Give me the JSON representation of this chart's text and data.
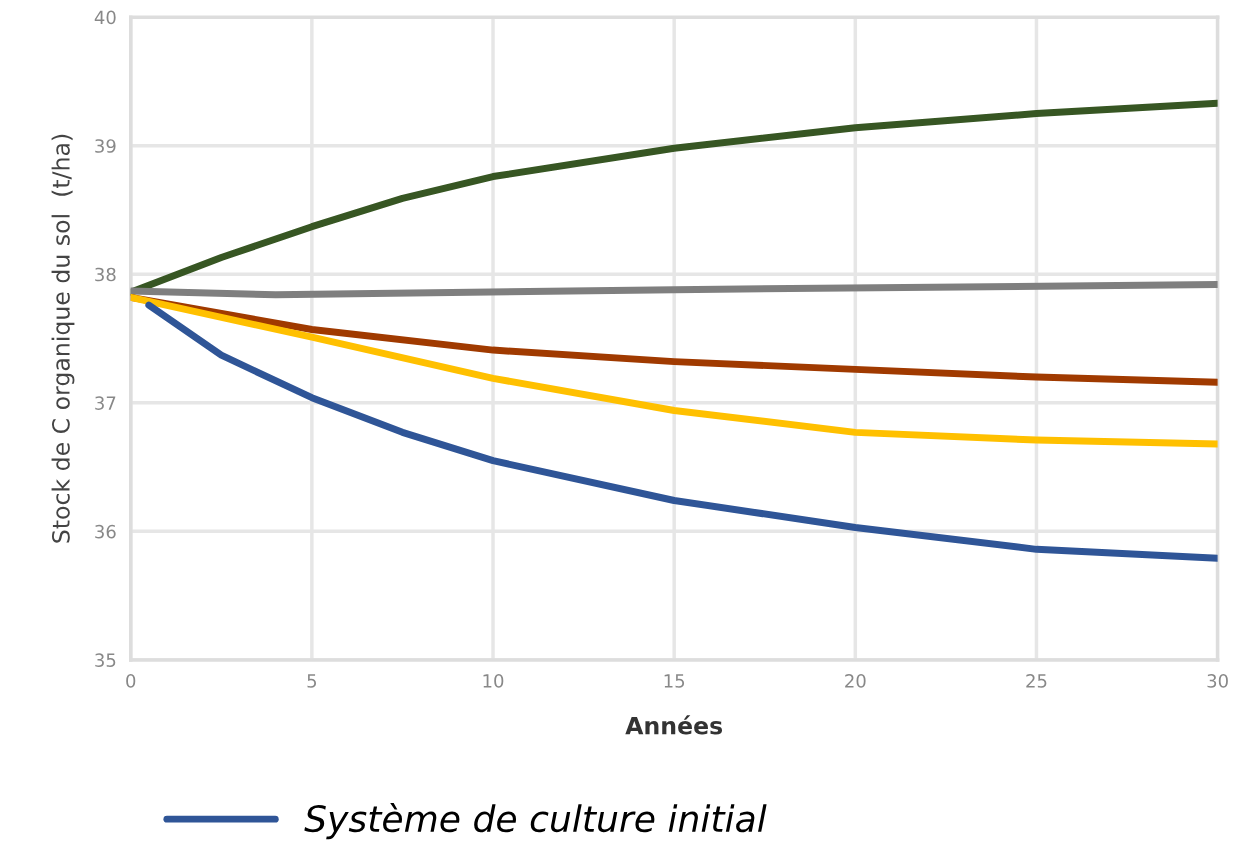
{
  "chart_data": {
    "type": "line",
    "xlabel": "Années",
    "ylabel": "Stock de C organique du sol  (t/ha)",
    "xlim": [
      0,
      30
    ],
    "xticks": [
      0,
      5,
      10,
      15,
      20,
      25,
      30
    ],
    "ylim": [
      35,
      40
    ],
    "yticks": [
      35,
      36,
      37,
      38,
      39,
      40
    ],
    "grid": true,
    "legend": "bottom",
    "line_style": "solid",
    "series": [
      {
        "color": "#375623",
        "x": [
          0,
          2.5,
          5,
          7.5,
          10,
          15,
          20,
          25,
          30
        ],
        "values": [
          37.86,
          38.13,
          38.37,
          38.59,
          38.76,
          38.98,
          39.14,
          39.25,
          39.33
        ]
      },
      {
        "color": "#7f7f7f",
        "x": [
          0,
          4,
          15,
          30
        ],
        "values": [
          37.87,
          37.84,
          37.88,
          37.92
        ]
      },
      {
        "color": "#a03a00",
        "x": [
          0,
          5,
          10,
          15,
          20,
          25,
          30
        ],
        "values": [
          37.82,
          37.57,
          37.41,
          37.32,
          37.26,
          37.2,
          37.16
        ]
      },
      {
        "color": "#ffc000",
        "x": [
          0,
          5,
          10,
          15,
          20,
          25,
          30
        ],
        "values": [
          37.82,
          37.51,
          37.19,
          36.94,
          36.77,
          36.71,
          36.68
        ]
      },
      {
        "name": "Système de culture initial",
        "color": "#2f5597",
        "x": [
          0.5,
          2.5,
          5,
          7.5,
          10,
          15,
          20,
          25,
          30
        ],
        "values": [
          37.76,
          37.37,
          37.04,
          36.77,
          36.55,
          36.24,
          36.03,
          35.86,
          35.79
        ]
      }
    ]
  }
}
